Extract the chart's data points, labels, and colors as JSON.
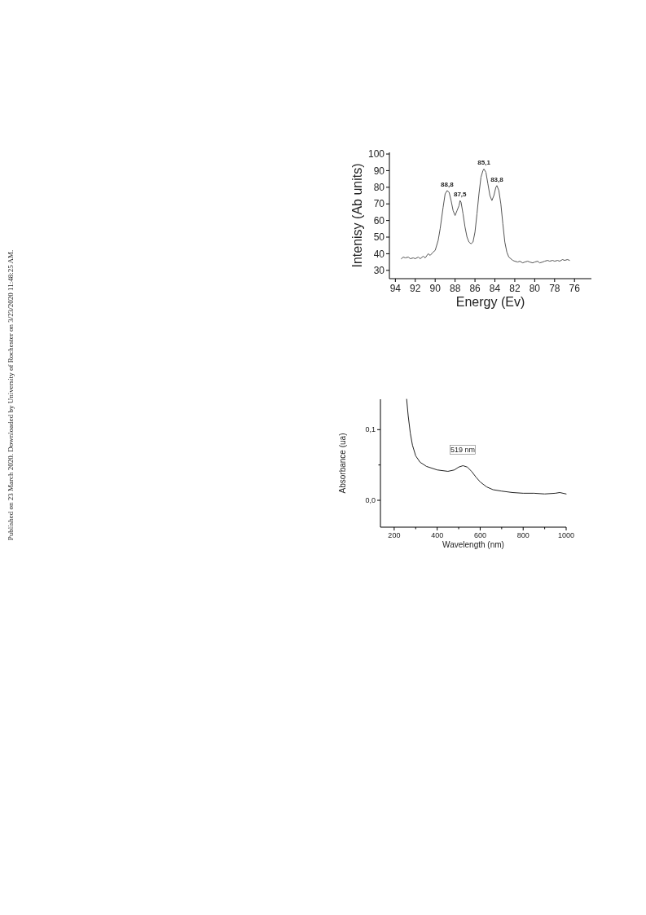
{
  "chart_data": [
    {
      "type": "line",
      "xlabel": "Energy (Ev)",
      "ylabel": "Intenisy (Ab units)",
      "xlim": [
        94.6,
        74.3
      ],
      "ylim": [
        25,
        101
      ],
      "xticks": [
        94,
        92,
        90,
        88,
        86,
        84,
        82,
        80,
        78,
        76
      ],
      "yticks": [
        30,
        40,
        50,
        60,
        70,
        80,
        90,
        100
      ],
      "marker": "none",
      "line_style": "solid",
      "series": [
        {
          "color": "#555555",
          "x": [
            93.4,
            93.2,
            93,
            92.7,
            92.5,
            92.2,
            92,
            91.7,
            91.5,
            91.2,
            91,
            90.7,
            90.5,
            90.2,
            90,
            89.7,
            89.5,
            89.2,
            89,
            88.8,
            88.6,
            88.4,
            88.2,
            88,
            87.8,
            87.6,
            87.5,
            87.4,
            87.2,
            87,
            86.8,
            86.6,
            86.4,
            86.2,
            86,
            85.8,
            85.6,
            85.4,
            85.2,
            85.1,
            84.9,
            84.7,
            84.5,
            84.3,
            84.1,
            83.9,
            83.8,
            83.6,
            83.4,
            83.2,
            83,
            82.8,
            82.6,
            82.4,
            82.2,
            82,
            81.7,
            81.5,
            81.2,
            81,
            80.7,
            80.5,
            80.2,
            80,
            79.7,
            79.5,
            79.2,
            79,
            78.7,
            78.5,
            78.2,
            78,
            77.7,
            77.5,
            77.2,
            77,
            76.7,
            76.5
          ],
          "values": [
            37,
            38,
            37.5,
            38,
            37,
            37.5,
            37,
            38,
            37,
            38.5,
            37.5,
            40,
            39,
            41,
            42,
            48,
            55,
            68,
            76,
            78,
            77,
            72,
            66,
            63,
            66,
            69,
            72,
            71,
            64,
            56,
            50,
            47,
            46,
            47,
            53,
            64,
            76,
            86,
            90,
            91,
            89,
            82,
            75,
            72,
            75,
            80,
            81,
            78,
            70,
            58,
            47,
            41,
            38,
            37,
            36,
            35.5,
            35,
            35.5,
            34.5,
            35,
            35.5,
            35,
            34.5,
            35,
            35.5,
            34.5,
            35,
            35.5,
            36,
            35.5,
            36,
            35.5,
            36,
            35.5,
            36.5,
            36,
            36.5,
            36
          ]
        }
      ],
      "annotations": [
        {
          "text": "88,8",
          "x": 88.8,
          "y": 78
        },
        {
          "text": "87,5",
          "x": 87.5,
          "y": 72
        },
        {
          "text": "85,1",
          "x": 85.1,
          "y": 91
        },
        {
          "text": "83,8",
          "x": 83.8,
          "y": 81
        },
        "Published on 23 March 2020. Downloaded by University of Rochester on 3/23/2020 11:48:25 AM."
      ]
    },
    {
      "type": "line",
      "xlabel": "Wavelength (nm)",
      "ylabel": "Absorbance (ua)",
      "xlim": [
        136,
        1000
      ],
      "ylim": [
        -0.038,
        0.143
      ],
      "xticks": [
        200,
        {
          "value": 300,
          "label": null
        },
        400,
        {
          "value": 500,
          "label": null
        },
        600,
        {
          "value": 700,
          "label": null
        },
        800,
        {
          "value": 900,
          "label": null
        },
        1000
      ],
      "yticks": [
        {
          "value": 0,
          "label": "0,0"
        },
        {
          "value": 0.05,
          "label": null
        },
        {
          "value": 0.1,
          "label": "0,1"
        }
      ],
      "marker": "none",
      "line_style": "solid",
      "series": [
        {
          "color": "#222222",
          "x": [
            258,
            265,
            275,
            285,
            300,
            320,
            350,
            400,
            450,
            480,
            500,
            520,
            540,
            560,
            580,
            600,
            630,
            660,
            700,
            750,
            800,
            850,
            900,
            950,
            970,
            1000
          ],
          "values": [
            0.143,
            0.12,
            0.095,
            0.078,
            0.063,
            0.054,
            0.048,
            0.043,
            0.041,
            0.043,
            0.047,
            0.049,
            0.047,
            0.041,
            0.033,
            0.026,
            0.019,
            0.015,
            0.013,
            0.011,
            0.01,
            0.01,
            0.009,
            0.01,
            0.011,
            0.009
          ]
        }
      ],
      "annotations": [
        {
          "text": "519 nm",
          "x": 519,
          "y": 0.049
        }
      ]
    }
  ]
}
